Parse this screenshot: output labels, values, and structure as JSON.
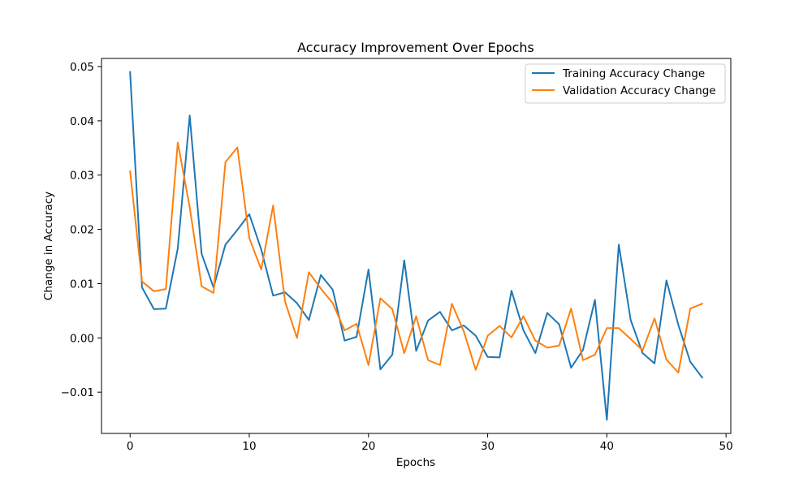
{
  "chart_data": {
    "type": "line",
    "title": "Accuracy Improvement Over Epochs",
    "xlabel": "Epochs",
    "ylabel": "Change in Accuracy",
    "xlim": [
      -2.4,
      50.4
    ],
    "ylim": [
      -0.0176,
      0.0515
    ],
    "x_ticks": [
      0,
      10,
      20,
      30,
      40,
      50
    ],
    "y_ticks": [
      -0.01,
      0.0,
      0.01,
      0.02,
      0.03,
      0.04,
      0.05
    ],
    "y_tick_labels": [
      "−0.01",
      "0.00",
      "0.01",
      "0.02",
      "0.03",
      "0.04",
      "0.05"
    ],
    "grid": false,
    "legend_position": "top-right",
    "x": [
      0,
      1,
      2,
      3,
      4,
      5,
      6,
      7,
      8,
      9,
      10,
      11,
      12,
      13,
      14,
      15,
      16,
      17,
      18,
      19,
      20,
      21,
      22,
      23,
      24,
      25,
      26,
      27,
      28,
      29,
      30,
      31,
      32,
      33,
      34,
      35,
      36,
      37,
      38,
      39,
      40,
      41,
      42,
      43,
      44,
      45,
      46,
      47,
      48
    ],
    "series": [
      {
        "name": "Training Accuracy Change",
        "color": "#1f77b4",
        "values": [
          0.049,
          0.0093,
          0.0053,
          0.0054,
          0.0165,
          0.041,
          0.0155,
          0.0093,
          0.0172,
          0.0199,
          0.0228,
          0.0163,
          0.0078,
          0.0084,
          0.0064,
          0.0033,
          0.0116,
          0.0089,
          -0.0005,
          0.0002,
          0.0126,
          -0.0058,
          -0.0031,
          0.0143,
          -0.0024,
          0.0032,
          0.0048,
          0.0014,
          0.0023,
          0.0004,
          -0.0035,
          -0.0036,
          0.0087,
          0.0014,
          -0.0028,
          0.0046,
          0.0025,
          -0.0055,
          -0.0022,
          0.007,
          -0.0151,
          0.0172,
          0.0033,
          -0.0028,
          -0.0047,
          0.0106,
          0.0024,
          -0.0044,
          -0.0073
        ]
      },
      {
        "name": "Validation Accuracy Change",
        "color": "#ff7f0e",
        "values": [
          0.0307,
          0.0104,
          0.0086,
          0.009,
          0.036,
          0.0241,
          0.0095,
          0.0083,
          0.0324,
          0.0351,
          0.0184,
          0.0126,
          0.0244,
          0.0067,
          0.0,
          0.0121,
          0.0091,
          0.0064,
          0.0014,
          0.0026,
          -0.005,
          0.0073,
          0.0053,
          -0.0028,
          0.004,
          -0.0041,
          -0.005,
          0.0063,
          0.0012,
          -0.0059,
          0.0004,
          0.0022,
          0.0001,
          0.004,
          -0.0005,
          -0.0018,
          -0.0014,
          0.0054,
          -0.0041,
          -0.0031,
          0.0018,
          0.0018,
          -0.0002,
          -0.0023,
          0.0036,
          -0.004,
          -0.0064,
          0.0054,
          0.0063
        ]
      }
    ]
  }
}
